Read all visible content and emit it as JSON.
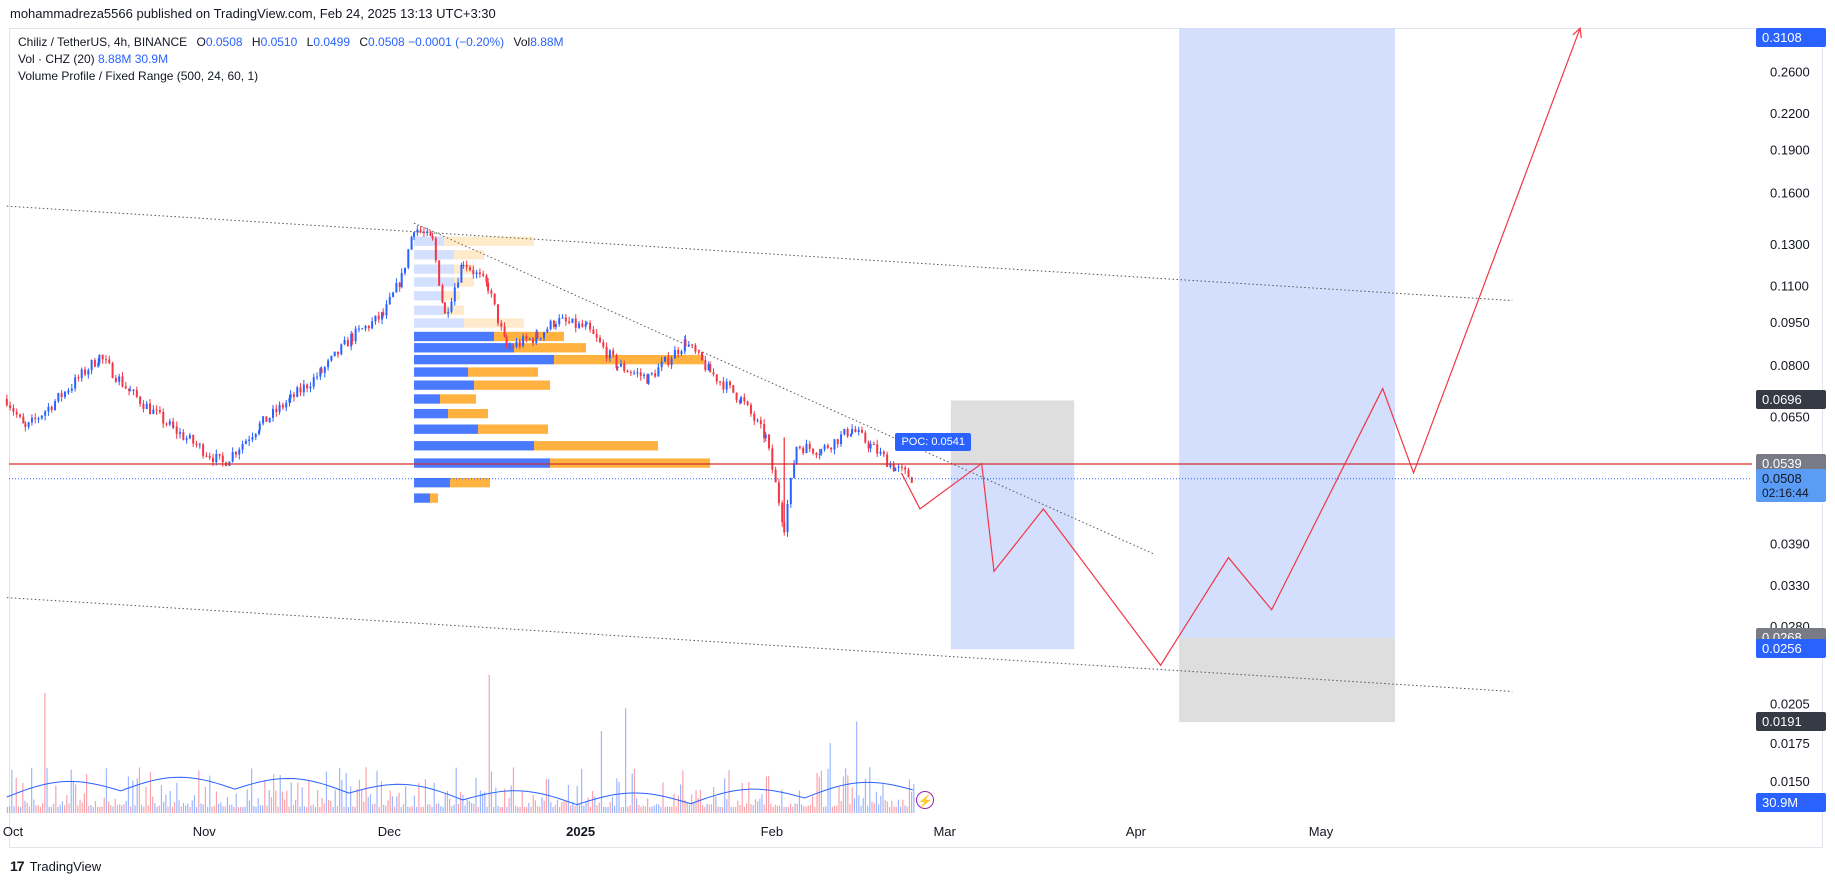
{
  "header": {
    "publisher": "mohammadreza5566 published on TradingView.com, Feb 24, 2025 13:13 UTC+3:30"
  },
  "legend": {
    "symbol": "Chiliz / TetherUS, 4h, BINANCE",
    "ohlc": {
      "o_label": "O",
      "o": "0.0508",
      "h_label": "H",
      "h": "0.0510",
      "l_label": "L",
      "l": "0.0499",
      "c_label": "C",
      "c": "0.0508",
      "change": "−0.0001 (−0.20%)",
      "vol_label": "Vol",
      "vol": "8.88M"
    },
    "volume_indicator": {
      "label": "Vol · CHZ (20)",
      "v1": "8.88M",
      "v2": "30.9M"
    },
    "volume_profile": "Volume Profile / Fixed Range (500, 24, 60, 1)"
  },
  "poc_label": "POC: 0.0541",
  "footer": {
    "brand": "TradingView",
    "logo_glyph": "17"
  },
  "colors": {
    "up": "#2962ff",
    "down": "#f23645",
    "profile_up": "#2962ff",
    "profile_down": "#ff9800",
    "target_zone": "#d1ddfc",
    "stop_zone": "#dcdcdc",
    "projection": "#f23645"
  },
  "icons": {
    "bolt": "bolt-icon"
  },
  "chart_data": {
    "type": "candlestick",
    "scale": "log",
    "x_ticks": [
      "Oct",
      "Nov",
      "Dec",
      "2025",
      "Feb",
      "Mar",
      "Apr",
      "May"
    ],
    "y_ticks": [
      "0.2600",
      "0.2200",
      "0.1900",
      "0.1600",
      "0.1300",
      "0.1100",
      "0.0950",
      "0.0800",
      "0.0650",
      "0.0390",
      "0.0330",
      "0.0280",
      "0.0205",
      "0.0175",
      "0.0150"
    ],
    "price_badges": [
      {
        "value": "0.3108",
        "bg": "#2962ff",
        "fg": "#ffffff"
      },
      {
        "value": "0.0696",
        "bg": "#363a45",
        "fg": "#ffffff"
      },
      {
        "value": "0.0539",
        "bg": "#787b86",
        "fg": "#ffffff"
      },
      {
        "value": "0.0508",
        "sub": "02:16:44",
        "bg": "#5b9cf6",
        "fg": "#131722"
      },
      {
        "value": "0.0268",
        "bg": "#787b86",
        "fg": "#ffffff"
      },
      {
        "value": "0.0256",
        "bg": "#2962ff",
        "fg": "#ffffff"
      },
      {
        "value": "0.0191",
        "bg": "#363a45",
        "fg": "#ffffff"
      },
      {
        "value": "30.9M",
        "bg": "#2962ff",
        "fg": "#ffffff"
      }
    ],
    "price_path": [
      [
        "Sep 30",
        0.07
      ],
      [
        "Oct 3",
        0.062
      ],
      [
        "Oct 10",
        0.073
      ],
      [
        "Oct 15",
        0.083
      ],
      [
        "Oct 20",
        0.072
      ],
      [
        "Oct 27",
        0.062
      ],
      [
        "Nov 4",
        0.054
      ],
      [
        "Nov 10",
        0.063
      ],
      [
        "Nov 15",
        0.07
      ],
      [
        "Nov 20",
        0.078
      ],
      [
        "Nov 25",
        0.09
      ],
      [
        "Nov 30",
        0.098
      ],
      [
        "Dec 3",
        0.114
      ],
      [
        "Dec 5",
        0.14
      ],
      [
        "Dec 8",
        0.132
      ],
      [
        "Dec 10",
        0.098
      ],
      [
        "Dec 13",
        0.122
      ],
      [
        "Dec 17",
        0.11
      ],
      [
        "Dec 20",
        0.086
      ],
      [
        "Dec 25",
        0.09
      ],
      [
        "Dec 28",
        0.096
      ],
      [
        "Jan 2",
        0.093
      ],
      [
        "Jan 7",
        0.08
      ],
      [
        "Jan 12",
        0.076
      ],
      [
        "Jan 18",
        0.088
      ],
      [
        "Jan 22",
        0.078
      ],
      [
        "Jan 27",
        0.07
      ],
      [
        "Jan 31",
        0.06
      ],
      [
        "Feb 3",
        0.042
      ],
      [
        "Feb 5",
        0.058
      ],
      [
        "Feb 9",
        0.057
      ],
      [
        "Feb 14",
        0.062
      ],
      [
        "Feb 17",
        0.058
      ],
      [
        "Feb 21",
        0.053
      ],
      [
        "Feb 24",
        0.0508
      ]
    ],
    "volume_profile": [
      {
        "price": 0.132,
        "buy": 0.15,
        "sell": 0.45
      },
      {
        "price": 0.125,
        "buy": 0.2,
        "sell": 0.15
      },
      {
        "price": 0.118,
        "buy": 0.2,
        "sell": 0.1
      },
      {
        "price": 0.112,
        "buy": 0.2,
        "sell": 0.1
      },
      {
        "price": 0.106,
        "buy": 0.15,
        "sell": 0.08
      },
      {
        "price": 0.1,
        "buy": 0.15,
        "sell": 0.1
      },
      {
        "price": 0.095,
        "buy": 0.25,
        "sell": 0.3
      },
      {
        "price": 0.09,
        "buy": 0.4,
        "sell": 0.35
      },
      {
        "price": 0.086,
        "buy": 0.5,
        "sell": 0.36
      },
      {
        "price": 0.082,
        "buy": 0.7,
        "sell": 0.75
      },
      {
        "price": 0.078,
        "buy": 0.27,
        "sell": 0.35
      },
      {
        "price": 0.074,
        "buy": 0.3,
        "sell": 0.38
      },
      {
        "price": 0.07,
        "buy": 0.13,
        "sell": 0.18
      },
      {
        "price": 0.066,
        "buy": 0.17,
        "sell": 0.2
      },
      {
        "price": 0.062,
        "buy": 0.32,
        "sell": 0.35
      },
      {
        "price": 0.058,
        "buy": 0.6,
        "sell": 0.62
      },
      {
        "price": 0.0541,
        "buy": 0.68,
        "sell": 0.8
      },
      {
        "price": 0.05,
        "buy": 0.18,
        "sell": 0.2
      },
      {
        "price": 0.047,
        "buy": 0.08,
        "sell": 0.04
      }
    ],
    "poc": 0.0541,
    "horizontal_line": 0.0539,
    "last_price": 0.0508,
    "trendlines": [
      {
        "from": [
          "Sep 30",
          0.152
        ],
        "to": [
          "Jun 1",
          0.104
        ],
        "style": "dotted"
      },
      {
        "from": [
          "Sep 30",
          0.0315
        ],
        "to": [
          "Jun 1",
          0.0216
        ],
        "style": "dotted"
      },
      {
        "from": [
          "Dec 5",
          0.142
        ],
        "to": [
          "Apr 4",
          0.0375
        ],
        "style": "dotted"
      }
    ],
    "zones": [
      {
        "kind": "target",
        "x": [
          "Mar 2",
          "Mar 22"
        ],
        "y": [
          0.0256,
          0.0541
        ]
      },
      {
        "kind": "stop",
        "x": [
          "Mar 2",
          "Mar 22"
        ],
        "y": [
          0.0541,
          0.0696
        ]
      },
      {
        "kind": "target",
        "x": [
          "Apr 8",
          "May 13"
        ],
        "y": [
          0.0268,
          0.3108
        ]
      },
      {
        "kind": "stop",
        "x": [
          "Apr 8",
          "May 13"
        ],
        "y": [
          0.0191,
          0.0268
        ]
      }
    ],
    "projection": [
      [
        "Feb 22",
        0.052
      ],
      [
        "Feb 25",
        0.045
      ],
      [
        "Mar 7",
        0.054
      ],
      [
        "Mar 9",
        0.035
      ],
      [
        "Mar 17",
        0.045
      ],
      [
        "Apr 5",
        0.024
      ],
      [
        "Apr 16",
        0.037
      ],
      [
        "Apr 23",
        0.03
      ],
      [
        "May 11",
        0.073
      ],
      [
        "May 16",
        0.052
      ],
      [
        "Jun 12",
        0.3108
      ]
    ],
    "volume": {
      "baseline": "small",
      "ma_period": 20,
      "last": "30.9M"
    }
  }
}
